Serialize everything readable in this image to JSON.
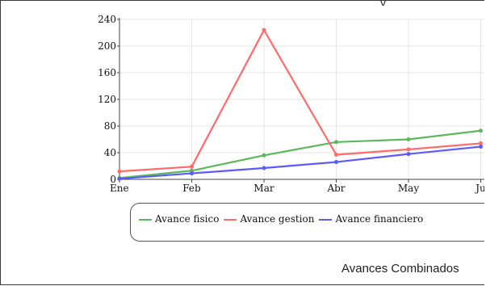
{
  "window": {
    "top_clip_text": "y"
  },
  "chart_data": {
    "type": "line",
    "title": "Avances Combinados",
    "categories": [
      "Ene",
      "Feb",
      "Mar",
      "Abr",
      "May",
      "Jun"
    ],
    "category_labels": [
      "Ene",
      "Feb",
      "Mar",
      "Abr",
      "May",
      "Ju"
    ],
    "ylim": [
      0,
      240
    ],
    "yticks": [
      0,
      40,
      80,
      120,
      160,
      200,
      240
    ],
    "grid": true,
    "legend_position": "bottom",
    "series": [
      {
        "name": "Avance fisico",
        "color": "#5cb85c",
        "values": [
          2,
          13,
          36,
          56,
          60,
          73
        ]
      },
      {
        "name": "Avance gestion",
        "color": "#ff6b6b",
        "values": [
          12,
          19,
          224,
          37,
          45,
          54
        ]
      },
      {
        "name": "Avance financiero",
        "color": "#5a5aff",
        "values": [
          1,
          9,
          17,
          26,
          38,
          49
        ]
      }
    ]
  }
}
